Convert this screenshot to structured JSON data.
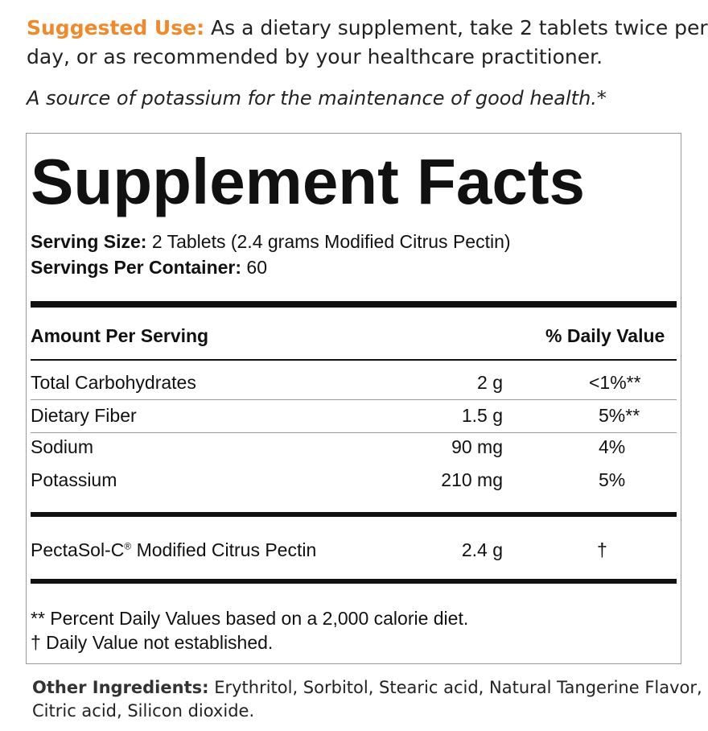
{
  "suggested_use": {
    "label": "Suggested Use:",
    "text_line1": "As a dietary supplement, take 2 tablets twice per",
    "text_line2": "day, or as recommended by your healthcare practitioner."
  },
  "tagline": "A source of potassium for the maintenance of good health.*",
  "facts": {
    "title": "Supplement Facts",
    "serving_size": {
      "label": "Serving Size:",
      "value": "2 Tablets (2.4 grams Modified Citrus Pectin)"
    },
    "servings_per_container": {
      "label": "Servings Per Container:",
      "value": "60"
    },
    "header": {
      "amount": "Amount Per Serving",
      "dv": "% Daily Value"
    },
    "rows": [
      [
        "Total Carbohydrates",
        "2 g",
        "<1%**"
      ],
      [
        "Dietary Fiber",
        "1.5 g",
        "5%**"
      ],
      [
        "Sodium",
        "90 mg",
        "4%"
      ],
      [
        "Potassium",
        "210 mg",
        "5%"
      ]
    ],
    "proprietary": {
      "name": "PectaSol-C",
      "mark": "®",
      "name_rest": "Modified Citrus Pectin",
      "amount": "2.4 g",
      "dv": "†"
    },
    "footnotes": [
      "** Percent Daily Values based on a 2,000 calorie diet.",
      "† Daily Value not established."
    ]
  },
  "other_ingredients": {
    "label": "Other Ingredients:",
    "text_line1": "Erythritol, Sorbitol, Stearic acid, Natural Tangerine Flavor,",
    "text_line2": "Citric acid, Silicon dioxide."
  }
}
